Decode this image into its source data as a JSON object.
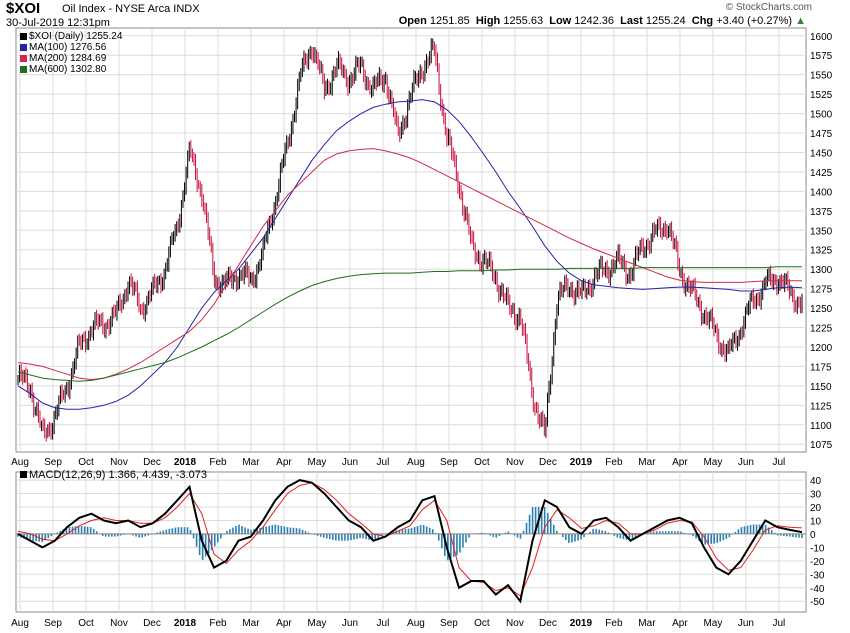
{
  "header": {
    "symbol": "$XOI",
    "name": "Oil Index - NYSE Arca INDX",
    "date": "30-Jul-2019 12:31pm",
    "open_label": "Open",
    "open": "1251.85",
    "high_label": "High",
    "high": "1255.63",
    "low_label": "Low",
    "low": "1242.36",
    "last_label": "Last",
    "last": "1255.24",
    "chg_label": "Chg",
    "chg": "+3.40 (+0.27%)",
    "copyright": "© StockCharts.com"
  },
  "legend": {
    "price": "$XOI (Daily) 1255.24",
    "ma100": "MA(100) 1276.56",
    "ma200": "MA(200) 1284.69",
    "ma600": "MA(600) 1302.80"
  },
  "colors": {
    "ma100": "#2424a8",
    "ma200": "#d6284e",
    "ma600": "#1e6e1e",
    "up": "#000000",
    "down": "#c8103c",
    "hist": "#2a7fb0",
    "macd_line": "#000000",
    "signal_line": "#e02020",
    "grid": "#dcdcdc"
  },
  "chart_data": [
    {
      "type": "line",
      "title": "$XOI (Daily)",
      "ylim": [
        1065,
        1610
      ],
      "yticks": [
        1075,
        1100,
        1125,
        1150,
        1175,
        1200,
        1225,
        1250,
        1275,
        1300,
        1325,
        1350,
        1375,
        1400,
        1425,
        1450,
        1475,
        1500,
        1525,
        1550,
        1575,
        1600
      ],
      "x": [
        0,
        4,
        8,
        12,
        16,
        20,
        24,
        28,
        32,
        36,
        40,
        44,
        48,
        52,
        56,
        60,
        64,
        68,
        72,
        76,
        80,
        84,
        88,
        92,
        96,
        100,
        104,
        108,
        112,
        116,
        120,
        124,
        128,
        132,
        136,
        140,
        144,
        148,
        152,
        156,
        160,
        164,
        168,
        172,
        176,
        180,
        184,
        188,
        192,
        196,
        200,
        204,
        208,
        212,
        216,
        220,
        224,
        228,
        232,
        236,
        240,
        244,
        248,
        252,
        256
      ],
      "series": [
        {
          "name": "$XOI (Daily)",
          "values": [
            1160,
            1150,
            1085,
            1110,
            1150,
            1200,
            1225,
            1230,
            1240,
            1285,
            1250,
            1270,
            1300,
            1355,
            1450,
            1400,
            1290,
            1280,
            1295,
            1285,
            1320,
            1390,
            1460,
            1545,
            1590,
            1530,
            1560,
            1545,
            1560,
            1530,
            1550,
            1470,
            1520,
            1560,
            1580,
            1470,
            1410,
            1330,
            1310,
            1290,
            1250,
            1240,
            1140,
            1085,
            1260,
            1280,
            1265,
            1290,
            1300,
            1310,
            1295,
            1330,
            1345,
            1360,
            1300,
            1270,
            1245,
            1215,
            1190,
            1225,
            1260,
            1280,
            1290,
            1270,
            1255
          ]
        },
        {
          "name": "MA(100)",
          "values": [
            1150,
            1140,
            1128,
            1122,
            1120,
            1120,
            1122,
            1125,
            1130,
            1138,
            1150,
            1165,
            1180,
            1200,
            1225,
            1250,
            1270,
            1285,
            1300,
            1320,
            1340,
            1365,
            1390,
            1415,
            1440,
            1460,
            1478,
            1490,
            1500,
            1508,
            1512,
            1515,
            1516,
            1518,
            1515,
            1505,
            1490,
            1470,
            1448,
            1425,
            1400,
            1378,
            1355,
            1330,
            1310,
            1295,
            1285,
            1280,
            1278,
            1276,
            1275,
            1274,
            1275,
            1276,
            1277,
            1277,
            1276,
            1275,
            1274,
            1272,
            1272,
            1274,
            1276,
            1277,
            1276
          ]
        },
        {
          "name": "MA(200)",
          "values": [
            1180,
            1178,
            1175,
            1170,
            1165,
            1160,
            1158,
            1160,
            1165,
            1172,
            1180,
            1190,
            1200,
            1210,
            1220,
            1235,
            1255,
            1280,
            1305,
            1330,
            1355,
            1375,
            1395,
            1410,
            1425,
            1440,
            1448,
            1452,
            1454,
            1455,
            1452,
            1448,
            1443,
            1436,
            1428,
            1420,
            1412,
            1404,
            1396,
            1388,
            1380,
            1372,
            1364,
            1356,
            1348,
            1340,
            1333,
            1326,
            1320,
            1314,
            1308,
            1302,
            1296,
            1290,
            1286,
            1284,
            1283,
            1283,
            1283,
            1283,
            1284,
            1285,
            1285,
            1285,
            1285
          ]
        },
        {
          "name": "MA(600)",
          "values": [
            1168,
            1164,
            1160,
            1158,
            1157,
            1156,
            1157,
            1160,
            1164,
            1168,
            1172,
            1176,
            1180,
            1186,
            1193,
            1200,
            1208,
            1216,
            1225,
            1235,
            1245,
            1255,
            1264,
            1272,
            1279,
            1284,
            1288,
            1291,
            1293,
            1294,
            1295,
            1295,
            1295,
            1296,
            1297,
            1297,
            1298,
            1298,
            1298,
            1299,
            1299,
            1300,
            1300,
            1300,
            1300,
            1301,
            1301,
            1301,
            1301,
            1301,
            1301,
            1302,
            1302,
            1302,
            1302,
            1302,
            1302,
            1302,
            1302,
            1302,
            1302,
            1302,
            1303,
            1303,
            1303
          ]
        }
      ]
    },
    {
      "type": "line",
      "title": "MACD(12,26,9) 1.366, 4.439, -3.073",
      "ylim": [
        -58,
        46
      ],
      "yticks": [
        -50,
        -40,
        -30,
        -20,
        -10,
        0,
        10,
        20,
        30,
        40
      ],
      "x": [
        0,
        4,
        8,
        12,
        16,
        20,
        24,
        28,
        32,
        36,
        40,
        44,
        48,
        52,
        56,
        60,
        64,
        68,
        72,
        76,
        80,
        84,
        88,
        92,
        96,
        100,
        104,
        108,
        112,
        116,
        120,
        124,
        128,
        132,
        136,
        140,
        144,
        148,
        152,
        156,
        160,
        164,
        168,
        172,
        176,
        180,
        184,
        188,
        192,
        196,
        200,
        204,
        208,
        212,
        216,
        220,
        224,
        228,
        232,
        236,
        240,
        244,
        248,
        252,
        256
      ],
      "series": [
        {
          "name": "MACD",
          "values": [
            0,
            -5,
            -10,
            -5,
            5,
            12,
            15,
            10,
            8,
            10,
            5,
            8,
            15,
            25,
            35,
            -5,
            -25,
            -20,
            -5,
            -2,
            10,
            25,
            35,
            40,
            38,
            30,
            20,
            10,
            5,
            -5,
            -2,
            5,
            10,
            25,
            28,
            -10,
            -40,
            -35,
            -35,
            -45,
            -38,
            -50,
            -5,
            25,
            20,
            5,
            0,
            10,
            12,
            5,
            -5,
            0,
            5,
            10,
            12,
            8,
            -10,
            -25,
            -30,
            -20,
            -5,
            10,
            5,
            3,
            1.366
          ]
        },
        {
          "name": "Signal",
          "values": [
            2,
            0,
            -4,
            -5,
            0,
            6,
            10,
            12,
            10,
            10,
            8,
            8,
            12,
            20,
            30,
            15,
            -15,
            -22,
            -12,
            -5,
            5,
            18,
            30,
            36,
            38,
            33,
            25,
            15,
            8,
            0,
            -2,
            2,
            6,
            18,
            25,
            10,
            -25,
            -35,
            -36,
            -42,
            -40,
            -46,
            -25,
            5,
            18,
            12,
            4,
            6,
            10,
            8,
            0,
            0,
            3,
            8,
            10,
            9,
            -2,
            -18,
            -27,
            -25,
            -12,
            3,
            6,
            5,
            4.439
          ]
        },
        {
          "name": "Histogram",
          "values": [
            -2,
            -5,
            -6,
            0,
            5,
            6,
            5,
            -2,
            -2,
            0,
            -3,
            0,
            3,
            5,
            5,
            -20,
            -10,
            2,
            7,
            3,
            5,
            7,
            5,
            4,
            0,
            -3,
            -5,
            -5,
            -3,
            -5,
            0,
            3,
            4,
            7,
            3,
            -20,
            -15,
            0,
            1,
            -3,
            2,
            -4,
            20,
            20,
            2,
            -7,
            -4,
            4,
            2,
            -3,
            -5,
            0,
            2,
            2,
            2,
            -1,
            -8,
            -7,
            -3,
            5,
            7,
            7,
            -1,
            -2,
            -3.073
          ]
        }
      ]
    }
  ],
  "xaxis": {
    "labels": [
      "Aug",
      "Sep",
      "Oct",
      "Nov",
      "Dec",
      "2018",
      "Feb",
      "Mar",
      "Apr",
      "May",
      "Jun",
      "Jul",
      "Aug",
      "Sep",
      "Oct",
      "Nov",
      "Dec",
      "2019",
      "Feb",
      "Mar",
      "Apr",
      "May",
      "Jun",
      "Jul"
    ],
    "bold": [
      false,
      false,
      false,
      false,
      false,
      true,
      false,
      false,
      false,
      false,
      false,
      false,
      false,
      false,
      false,
      false,
      false,
      true,
      false,
      false,
      false,
      false,
      false,
      false
    ]
  }
}
